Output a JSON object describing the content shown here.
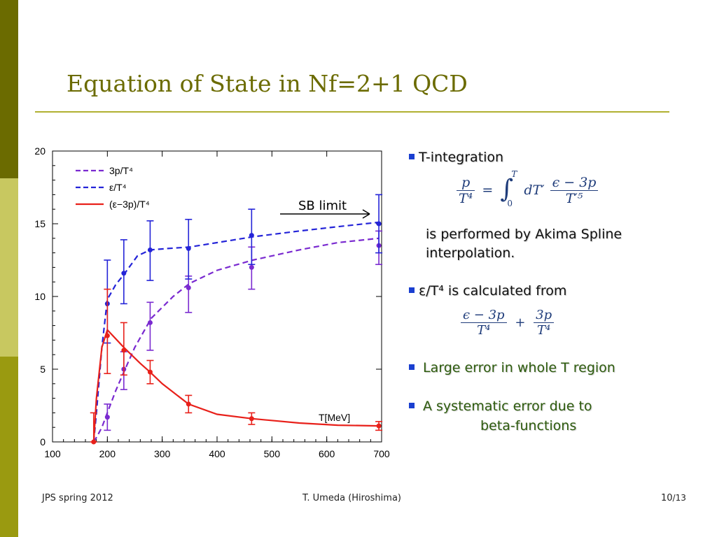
{
  "slide": {
    "title": "Equation of State in Nf=2+1 QCD",
    "accent_colors": {
      "title": "#6b6b00",
      "rule": "#b0b030",
      "stripe_dark": "#6b6b00",
      "stripe_light": "#c8c860",
      "stripe_mid": "#9a9a10"
    }
  },
  "chart_data": {
    "type": "line",
    "xlim": [
      100,
      700
    ],
    "ylim": [
      0,
      20
    ],
    "x_ticks": [
      100,
      200,
      300,
      400,
      500,
      600,
      700
    ],
    "y_ticks": [
      0,
      5,
      10,
      15,
      20
    ],
    "x_unit_label": "T[MeV]",
    "legend_position": "top-left",
    "annotation": {
      "text": "SB limit",
      "points_to": [
        700,
        15.6
      ]
    },
    "series": [
      {
        "name": "3p/T⁴",
        "style": "dashed",
        "color": "#7a2ad0",
        "curve": [
          [
            175,
            0
          ],
          [
            180,
            0.3
          ],
          [
            190,
            1.0
          ],
          [
            200,
            2.0
          ],
          [
            215,
            3.5
          ],
          [
            230,
            4.8
          ],
          [
            250,
            6.5
          ],
          [
            280,
            8.5
          ],
          [
            320,
            10.0
          ],
          [
            350,
            10.9
          ],
          [
            400,
            11.8
          ],
          [
            465,
            12.5
          ],
          [
            550,
            13.2
          ],
          [
            620,
            13.7
          ],
          [
            695,
            14.0
          ]
        ],
        "points": [
          {
            "x": 200,
            "y": 1.7,
            "lo": 0.8,
            "hi": 2.6
          },
          {
            "x": 230,
            "y": 5.0,
            "lo": 3.6,
            "hi": 6.2
          },
          {
            "x": 278,
            "y": 8.2,
            "lo": 6.3,
            "hi": 9.6
          },
          {
            "x": 348,
            "y": 10.6,
            "lo": 8.9,
            "hi": 11.4
          },
          {
            "x": 463,
            "y": 12.0,
            "lo": 10.5,
            "hi": 13.4
          },
          {
            "x": 695,
            "y": 13.5,
            "lo": 12.2,
            "hi": 14.5
          }
        ]
      },
      {
        "name": "ε/T⁴",
        "style": "dashed",
        "color": "#2424d8",
        "curve": [
          [
            175,
            0
          ],
          [
            180,
            2.0
          ],
          [
            190,
            6.5
          ],
          [
            200,
            9.8
          ],
          [
            215,
            10.8
          ],
          [
            230,
            11.5
          ],
          [
            255,
            12.8
          ],
          [
            278,
            13.2
          ],
          [
            310,
            13.3
          ],
          [
            350,
            13.4
          ],
          [
            400,
            13.7
          ],
          [
            465,
            14.1
          ],
          [
            550,
            14.5
          ],
          [
            620,
            14.8
          ],
          [
            695,
            15.1
          ]
        ],
        "points": [
          {
            "x": 200,
            "y": 9.5,
            "lo": 6.8,
            "hi": 12.5
          },
          {
            "x": 230,
            "y": 11.6,
            "lo": 9.5,
            "hi": 13.9
          },
          {
            "x": 278,
            "y": 13.2,
            "lo": 11.1,
            "hi": 15.2
          },
          {
            "x": 348,
            "y": 13.3,
            "lo": 11.2,
            "hi": 15.3
          },
          {
            "x": 463,
            "y": 14.2,
            "lo": 12.2,
            "hi": 16.0
          },
          {
            "x": 695,
            "y": 15.0,
            "lo": 13.0,
            "hi": 17.0
          }
        ]
      },
      {
        "name": "(ε−3p)/T⁴",
        "style": "solid",
        "color": "#e8201a",
        "curve": [
          [
            175,
            0
          ],
          [
            180,
            3.0
          ],
          [
            190,
            6.5
          ],
          [
            200,
            7.7
          ],
          [
            230,
            6.5
          ],
          [
            260,
            5.4
          ],
          [
            278,
            4.8
          ],
          [
            300,
            4.0
          ],
          [
            348,
            2.6
          ],
          [
            400,
            1.9
          ],
          [
            463,
            1.6
          ],
          [
            550,
            1.3
          ],
          [
            620,
            1.15
          ],
          [
            695,
            1.1
          ]
        ],
        "points": [
          {
            "x": 175,
            "y": 0.0,
            "lo": 0.0,
            "hi": 2.0
          },
          {
            "x": 200,
            "y": 7.3,
            "lo": 4.7,
            "hi": 10.5
          },
          {
            "x": 230,
            "y": 6.3,
            "lo": 4.6,
            "hi": 8.2
          },
          {
            "x": 278,
            "y": 4.8,
            "lo": 4.0,
            "hi": 5.6
          },
          {
            "x": 348,
            "y": 2.6,
            "lo": 2.0,
            "hi": 3.2
          },
          {
            "x": 463,
            "y": 1.6,
            "lo": 1.2,
            "hi": 2.0
          },
          {
            "x": 695,
            "y": 1.1,
            "lo": 0.8,
            "hi": 1.4
          }
        ]
      }
    ]
  },
  "bullets": {
    "b1": "T-integration",
    "b1_sub": "is performed by Akima Spline interpolation.",
    "b2": "ε/T⁴ is calculated from",
    "b3": "Large error in whole T region",
    "b4_line1": "A systematic error due to",
    "b4_line2": "beta-functions",
    "bullet_color": "#1a3fd0",
    "green_text": "#2e5c0e"
  },
  "formulas": {
    "f1_lhs_num": "p",
    "f1_lhs_den": "T⁴",
    "f1_eq": "=",
    "f1_int": "∫",
    "f1_upper": "T",
    "f1_lower": "0",
    "f1_d": "dT′",
    "f1_rhs_num": "ϵ − 3p",
    "f1_rhs_den": "T′⁵",
    "f2_a_num": "ϵ − 3p",
    "f2_a_den": "T⁴",
    "f2_plus": "+",
    "f2_b_num": "3p",
    "f2_b_den": "T⁴"
  },
  "footer": {
    "left": "JPS spring 2012",
    "center": "T. Umeda (Hiroshima)",
    "page": "10",
    "total": "/13"
  }
}
